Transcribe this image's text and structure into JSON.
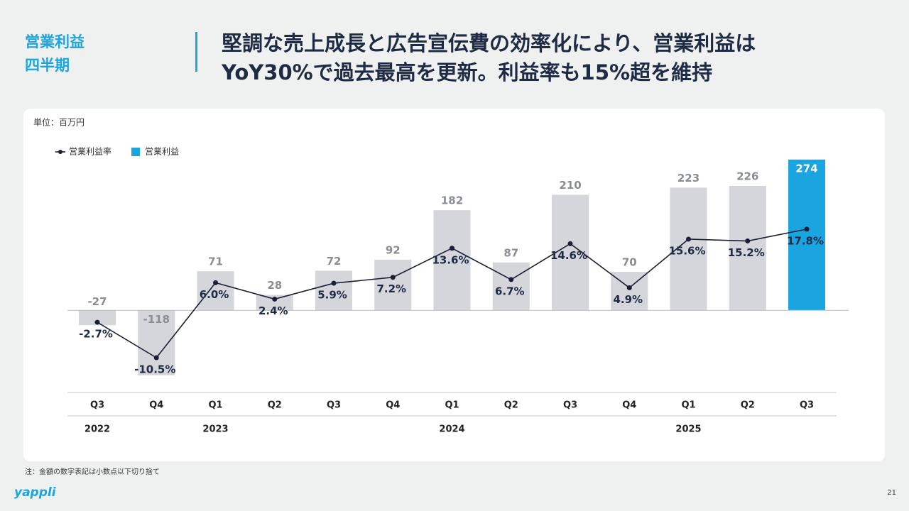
{
  "header": {
    "section_label": [
      "営業利益",
      "四半期"
    ],
    "title": [
      "堅調な売上成長と広告宣伝費の効率化により、営業利益は",
      "YoY30%で過去最高を更新。利益率も15%超を維持"
    ]
  },
  "unit": "単位：百万円",
  "chart_data": {
    "type": "combo",
    "categories": [
      "Q3",
      "Q4",
      "Q1",
      "Q2",
      "Q3",
      "Q4",
      "Q1",
      "Q2",
      "Q3",
      "Q4",
      "Q1",
      "Q2",
      "Q3"
    ],
    "years": [
      "2022",
      null,
      "2023",
      null,
      null,
      null,
      "2024",
      null,
      null,
      null,
      "2025",
      null,
      null
    ],
    "series": [
      {
        "name": "営業利益率",
        "type": "line",
        "axis": "y2",
        "color": "#1a1f36",
        "values": [
          -2.7,
          -10.5,
          6.0,
          2.4,
          5.9,
          7.2,
          13.6,
          6.7,
          14.6,
          4.9,
          15.6,
          15.2,
          17.8
        ],
        "value_labels": [
          "-2.7%",
          "-10.5%",
          "6.0%",
          "2.4%",
          "5.9%",
          "7.2%",
          "13.6%",
          "6.7%",
          "14.6%",
          "4.9%",
          "15.6%",
          "15.2%",
          "17.8%"
        ]
      },
      {
        "name": "営業利益",
        "type": "bar",
        "color": "#1ba5e0",
        "bar_colors": [
          "#d5d6db",
          "#d5d6db",
          "#d5d6db",
          "#d5d6db",
          "#d5d6db",
          "#d5d6db",
          "#d5d6db",
          "#d5d6db",
          "#d5d6db",
          "#d5d6db",
          "#d5d6db",
          "#d5d6db",
          "#1ba5e0"
        ],
        "values": [
          -27,
          -118,
          71,
          28,
          72,
          92,
          182,
          87,
          210,
          70,
          223,
          226,
          274
        ]
      }
    ],
    "ylim": [
      -148,
      306
    ],
    "y2lim": [
      -18,
      37
    ]
  },
  "note": "注：金額の数字表記は小数点以下切り捨て",
  "logo": "yappli",
  "page_number": "21"
}
